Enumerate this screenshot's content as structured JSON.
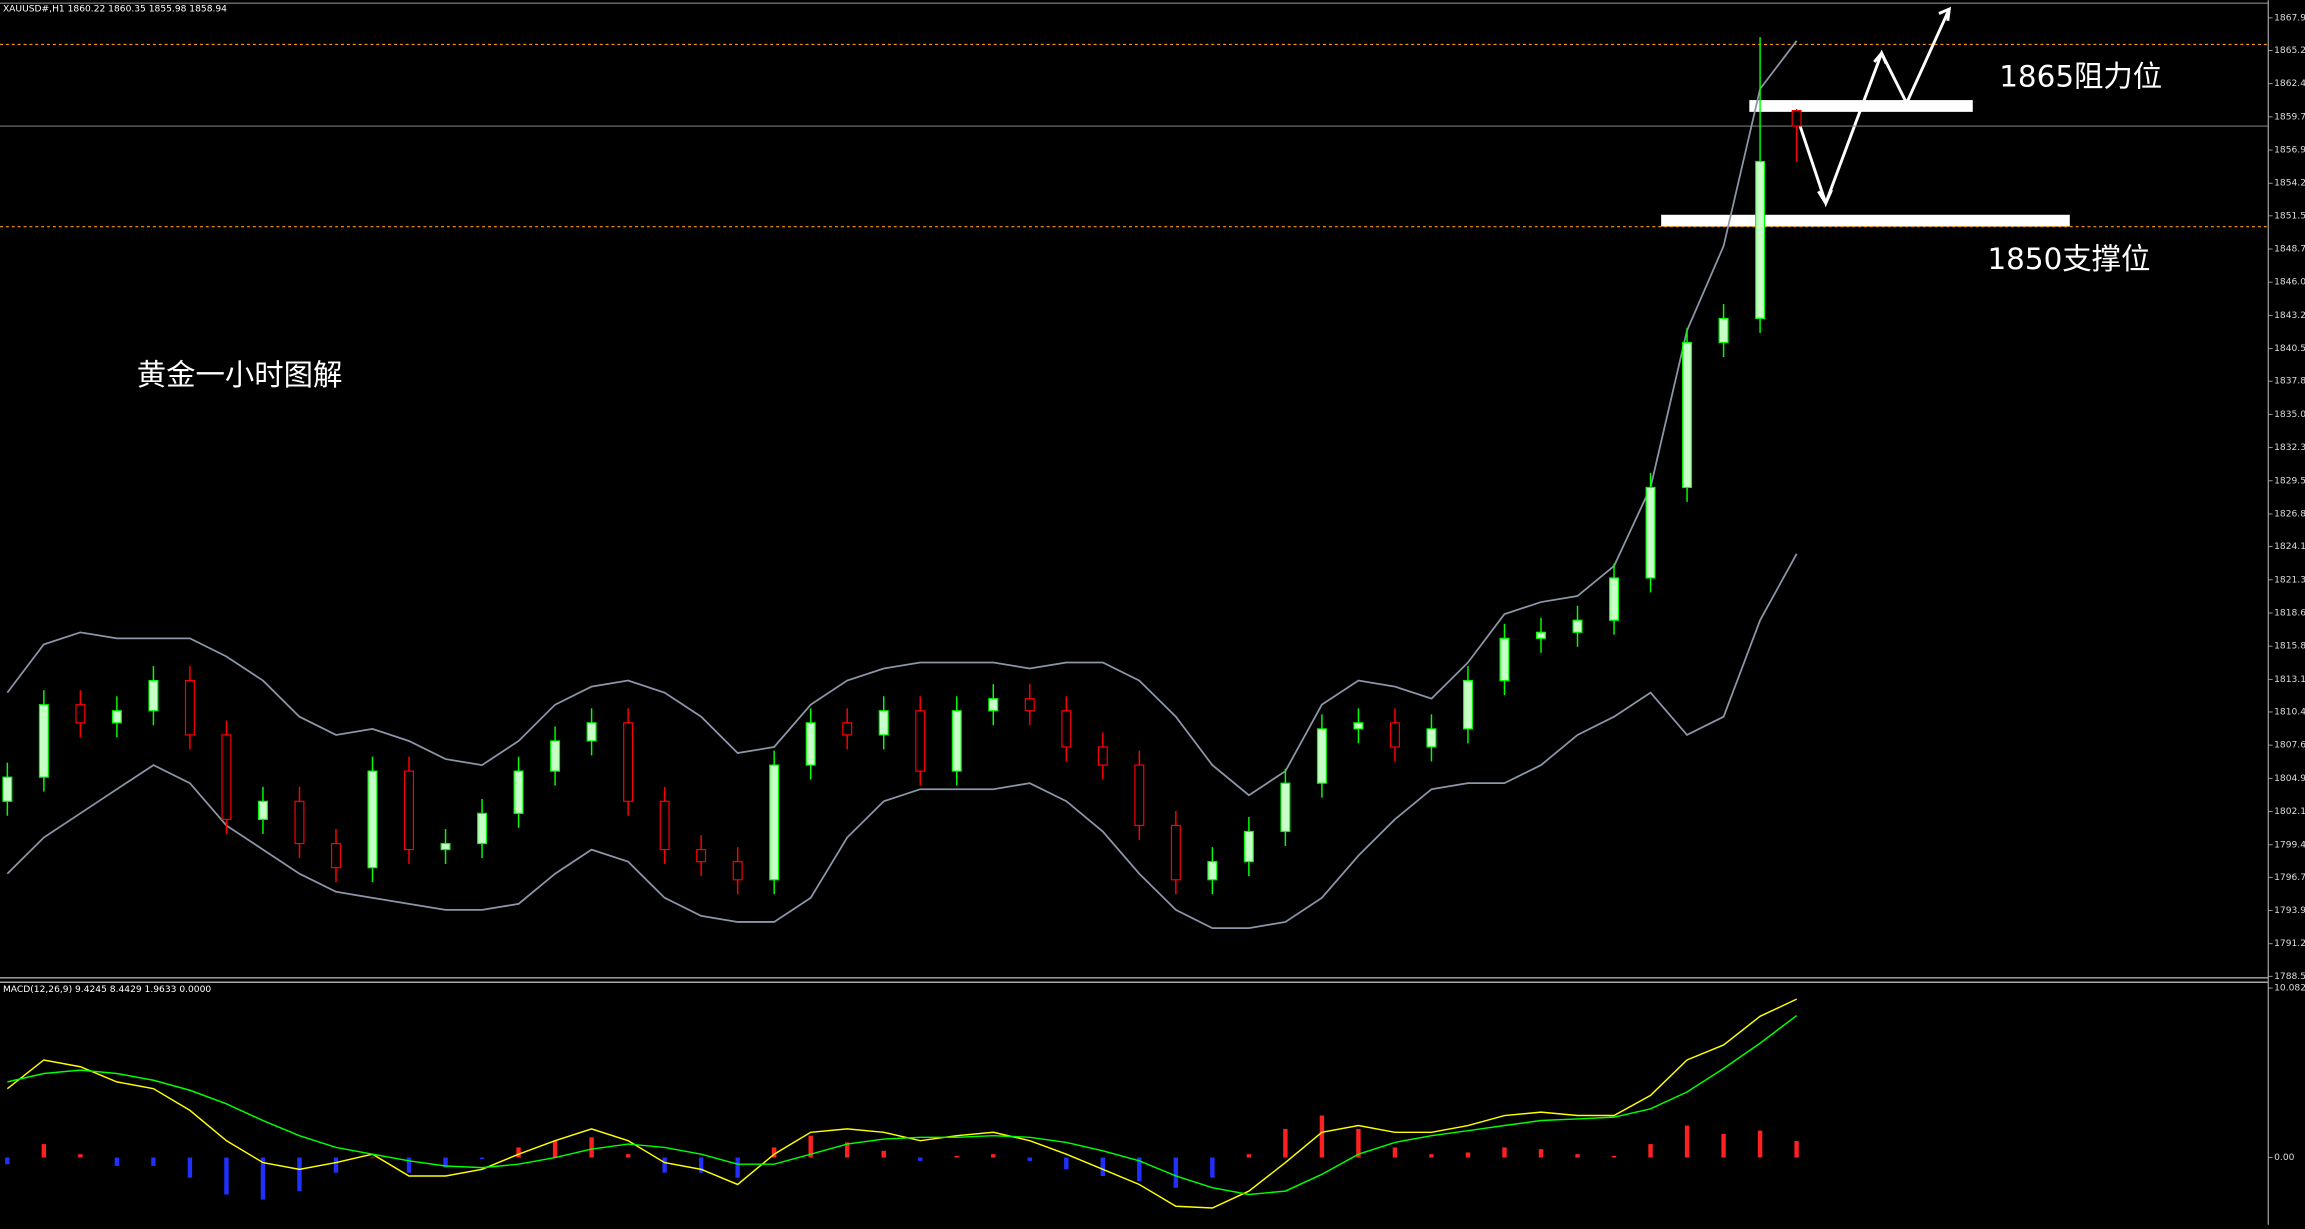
{
  "chart_data": {
    "type": "candlestick",
    "header": "XAUUSD#,H1  1860.22 1860.35 1855.98 1858.94",
    "annotations": {
      "title": "黄金一小时图解",
      "resistance_label": "1865阻力位",
      "support_label": "1850支撑位",
      "resistance_level": 1860.6,
      "support_level": 1851.1
    },
    "levels": [
      {
        "value": 1865.7,
        "color": "#ff9900"
      },
      {
        "value": 1850.6,
        "color": "#ff9900"
      }
    ],
    "categories": [
      null,
      null,
      null,
      null,
      null,
      null,
      null,
      null,
      null,
      null,
      null,
      null,
      null,
      null,
      null,
      null,
      null,
      null,
      null,
      null,
      null,
      null,
      null,
      null,
      null,
      null,
      null,
      null,
      null,
      null,
      null,
      null,
      null,
      null,
      null,
      null,
      null,
      null,
      null,
      null,
      null,
      null,
      null,
      null,
      null,
      null,
      null,
      null,
      null,
      null
    ],
    "open": [
      1803,
      1805,
      1811,
      1809.5,
      1810.5,
      1813,
      1808.5,
      1801.5,
      1803,
      1799.5,
      1797.5,
      1805.5,
      1799,
      1799.5,
      1802,
      1805.5,
      1808,
      1809.5,
      1803,
      1799,
      1798,
      1796.5,
      1806,
      1809.5,
      1808.5,
      1810.5,
      1805.5,
      1810.5,
      1811.5,
      1810.5,
      1807.5,
      1806,
      1801,
      1796.5,
      1798,
      1800.5,
      1804.5,
      1809,
      1809.5,
      1807.5,
      1809,
      1813,
      1816.5,
      1817,
      1818,
      1821.5,
      1829,
      1841,
      1843,
      1860.22
    ],
    "high": [
      1806.2,
      1812.2,
      1812.2,
      1811.7,
      1814.2,
      1814.2,
      1809.7,
      1804.2,
      1804.2,
      1800.7,
      1806.7,
      1806.7,
      1800.7,
      1803.2,
      1806.7,
      1809.2,
      1810.7,
      1810.7,
      1804.2,
      1800.2,
      1799.2,
      1807.2,
      1810.7,
      1810.7,
      1811.7,
      1811.7,
      1811.7,
      1812.7,
      1812.7,
      1811.7,
      1808.7,
      1807.2,
      1802.2,
      1799.2,
      1801.7,
      1805.7,
      1810.2,
      1810.7,
      1810.7,
      1810.2,
      1814.2,
      1817.7,
      1818.2,
      1819.2,
      1822.7,
      1830.2,
      1842.2,
      1844.2,
      1866.3,
      1860.35
    ],
    "low": [
      1801.8,
      1803.8,
      1808.3,
      1808.3,
      1809.3,
      1807.3,
      1800.3,
      1800.3,
      1798.3,
      1796.3,
      1796.3,
      1797.8,
      1797.8,
      1798.3,
      1800.8,
      1804.3,
      1806.8,
      1801.8,
      1797.8,
      1796.8,
      1795.3,
      1795.3,
      1804.8,
      1807.3,
      1807.3,
      1804.3,
      1804.3,
      1809.3,
      1809.3,
      1806.3,
      1804.8,
      1799.8,
      1795.3,
      1795.3,
      1796.8,
      1799.3,
      1803.3,
      1807.8,
      1806.3,
      1806.3,
      1807.8,
      1811.8,
      1815.3,
      1815.8,
      1816.8,
      1820.3,
      1827.8,
      1839.8,
      1841.8,
      1855.98
    ],
    "close": [
      1805,
      1811,
      1809.5,
      1810.5,
      1813,
      1808.5,
      1801.5,
      1803,
      1799.5,
      1797.5,
      1805.5,
      1799,
      1799.5,
      1802,
      1805.5,
      1808,
      1809.5,
      1803,
      1799,
      1798,
      1796.5,
      1806,
      1809.5,
      1808.5,
      1810.5,
      1805.5,
      1810.5,
      1811.5,
      1810.5,
      1807.5,
      1806,
      1801,
      1796.5,
      1798,
      1800.5,
      1804.5,
      1809,
      1809.5,
      1807.5,
      1809,
      1813,
      1816.5,
      1817,
      1818,
      1821.5,
      1829,
      1841,
      1843,
      1856,
      1858.94
    ],
    "up_color": "#00ff00",
    "down_color": "#ff0000",
    "up_body": "#c8ffc8",
    "bands": [
      {
        "color": "#8c96a8",
        "values": [
          1812,
          1816,
          1817,
          1816.5,
          1816.5,
          1816.5,
          1815,
          1813,
          1810,
          1808.5,
          1809,
          1808,
          1806.5,
          1806,
          1808,
          1811,
          1812.5,
          1813,
          1812,
          1810,
          1807,
          1807.5,
          1811,
          1813,
          1814,
          1814.5,
          1814.5,
          1814.5,
          1814,
          1814.5,
          1814.5,
          1813,
          1810,
          1806,
          1803.5,
          1805.5,
          1811,
          1813,
          1812.5,
          1811.5,
          1814.5,
          1818.5,
          1819.5,
          1820,
          1822.5,
          1829,
          1842,
          1849,
          1862,
          1866
        ]
      },
      {
        "color": "#8c96a8",
        "values": [
          1797,
          1800,
          1802,
          1804,
          1806,
          1804.5,
          1801,
          1799,
          1797,
          1795.5,
          1795,
          1794.5,
          1794,
          1794,
          1794.5,
          1797,
          1799,
          1798,
          1795,
          1793.5,
          1793,
          1793,
          1795,
          1800,
          1803,
          1804,
          1804,
          1804,
          1804.5,
          1803,
          1800.5,
          1797,
          1794,
          1792.5,
          1792.5,
          1793,
          1795,
          1798.5,
          1801.5,
          1804,
          1804.5,
          1804.5,
          1806,
          1808.5,
          1810,
          1812,
          1808.5,
          1810,
          1818,
          1823.5
        ]
      }
    ],
    "ylim": [
      1788.5,
      1869.36
    ],
    "yticks": [
      {
        "value": 1867.9,
        "label": "1867.90"
      },
      {
        "value": 1865.2,
        "label": "1865.20"
      },
      1862.45,
      {
        "value": 1859.7,
        "label": "1859.70"
      },
      1856.95,
      {
        "value": 1854.2,
        "label": "1854.20"
      },
      {
        "value": 1851.5,
        "label": "1851.50"
      },
      1848.75,
      {
        "value": 1846,
        "label": "1846.00"
      },
      1843.25,
      {
        "value": 1840.5,
        "label": "1840.50"
      },
      {
        "value": 1837.8,
        "label": "1837.80"
      },
      1835.05,
      {
        "value": 1832.3,
        "label": "1832.30"
      },
      1829.55,
      {
        "value": 1826.8,
        "label": "1826.80"
      },
      {
        "value": 1824.1,
        "label": "1824.10"
      },
      1821.35,
      {
        "value": 1818.6,
        "label": "1818.60"
      },
      1815.85,
      {
        "value": 1813.1,
        "label": "1813.10"
      },
      {
        "value": 1810.4,
        "label": "1810.40"
      },
      1807.65,
      {
        "value": 1804.9,
        "label": "1804.90"
      },
      1802.15,
      {
        "value": 1799.4,
        "label": "1799.40"
      },
      {
        "value": 1796.7,
        "label": "1796.70"
      },
      1793.95,
      {
        "value": 1791.2,
        "label": "1791.20"
      },
      {
        "value": 1788.5,
        "label": "1788.50"
      }
    ],
    "macd": {
      "label": "MACD(12,26,9) 9.4245 8.4429 1.9633 0.0000",
      "ylim": [
        -4.0,
        10.43
      ],
      "yticks": [
        10.0827,
        {
          "value": 0,
          "label": "0.00"
        }
      ],
      "histogram": {
        "pos_color": "#ff2020",
        "neg_color": "#2030ff",
        "values": [
          -0.4,
          0.8,
          0.2,
          -0.5,
          -0.5,
          -1.2,
          -2.2,
          -2.5,
          -2.0,
          -0.9,
          0.0,
          -0.9,
          -0.6,
          -0.1,
          0.6,
          1.0,
          1.2,
          0.2,
          -0.9,
          -0.9,
          -1.2,
          0.6,
          1.3,
          0.9,
          0.4,
          -0.2,
          0.1,
          0.2,
          -0.2,
          -0.7,
          -1.1,
          -1.4,
          -1.8,
          -1.2,
          0.2,
          1.7,
          2.5,
          1.7,
          0.6,
          0.2,
          0.3,
          0.6,
          0.5,
          0.2,
          0.1,
          0.8,
          1.9,
          1.4,
          1.6,
          0.98
        ]
      },
      "lines": [
        {
          "color": "#ffff00",
          "values": [
            4.1,
            5.8,
            5.4,
            4.5,
            4.1,
            2.8,
            1.0,
            -0.3,
            -0.7,
            -0.3,
            0.2,
            -1.1,
            -1.1,
            -0.7,
            0.2,
            1.0,
            1.7,
            1.0,
            -0.3,
            -0.7,
            -1.6,
            0.2,
            1.5,
            1.7,
            1.5,
            1.0,
            1.3,
            1.5,
            1.0,
            0.2,
            -0.7,
            -1.6,
            -2.9,
            -3.0,
            -2.0,
            -0.3,
            1.5,
            1.9,
            1.5,
            1.5,
            1.9,
            2.5,
            2.7,
            2.5,
            2.5,
            3.7,
            5.8,
            6.7,
            8.4,
            9.4245
          ]
        },
        {
          "color": "#00ff00",
          "values": [
            4.5,
            5.0,
            5.2,
            5.0,
            4.6,
            4.0,
            3.2,
            2.2,
            1.3,
            0.6,
            0.2,
            -0.2,
            -0.5,
            -0.6,
            -0.4,
            0.0,
            0.5,
            0.8,
            0.6,
            0.2,
            -0.4,
            -0.4,
            0.2,
            0.8,
            1.1,
            1.2,
            1.2,
            1.3,
            1.2,
            0.9,
            0.4,
            -0.2,
            -1.1,
            -1.8,
            -2.2,
            -2.0,
            -1.0,
            0.2,
            0.9,
            1.3,
            1.6,
            1.9,
            2.2,
            2.3,
            2.4,
            2.9,
            3.9,
            5.3,
            6.8,
            8.4429
          ]
        }
      ]
    }
  }
}
